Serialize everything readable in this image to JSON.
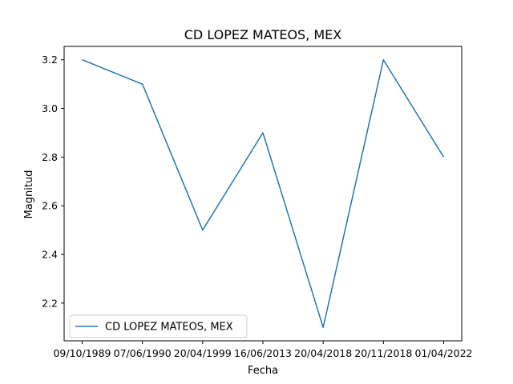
{
  "chart_data": {
    "type": "line",
    "title": "CD LOPEZ MATEOS, MEX",
    "xlabel": "Fecha",
    "ylabel": "Magnitud",
    "categories": [
      "09/10/1989",
      "07/06/1990",
      "20/04/1999",
      "16/06/2013",
      "20/04/2018",
      "20/11/2018",
      "01/04/2022"
    ],
    "series": [
      {
        "name": "CD LOPEZ MATEOS, MEX",
        "values": [
          3.2,
          3.1,
          2.5,
          2.9,
          2.1,
          3.2,
          2.8
        ],
        "color": "#1f77b4"
      }
    ],
    "ylim": [
      2.045,
      3.255
    ],
    "yticks": [
      "2.2",
      "2.4",
      "2.6",
      "2.8",
      "3.0",
      "3.2"
    ],
    "grid": false,
    "legend": "lower-left"
  }
}
